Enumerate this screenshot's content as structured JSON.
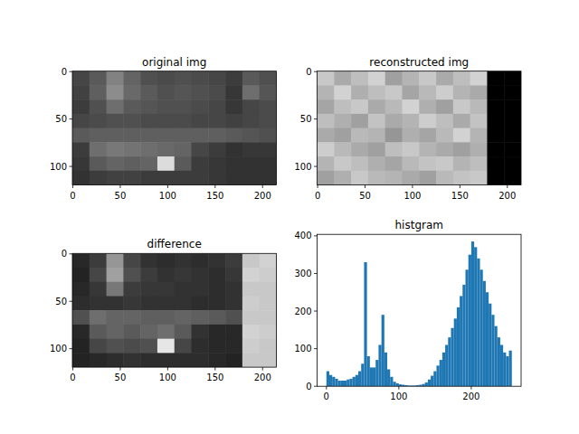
{
  "chart_data": [
    {
      "type": "image",
      "title": "original img",
      "xlim": [
        -0.5,
        214.5
      ],
      "ylim": [
        119.5,
        -0.5
      ],
      "xticks": [
        0,
        50,
        100,
        150,
        200
      ],
      "yticks": [
        0,
        50,
        100
      ],
      "cells": [
        [
          70,
          90,
          130,
          100,
          80,
          75,
          80,
          75,
          70,
          60,
          90,
          80
        ],
        [
          65,
          95,
          140,
          105,
          90,
          80,
          85,
          80,
          75,
          55,
          110,
          85
        ],
        [
          60,
          80,
          110,
          90,
          85,
          80,
          80,
          75,
          70,
          55,
          70,
          75
        ],
        [
          70,
          75,
          80,
          80,
          75,
          75,
          75,
          70,
          70,
          65,
          70,
          75
        ],
        [
          90,
          95,
          95,
          95,
          95,
          95,
          95,
          95,
          95,
          90,
          85,
          80
        ],
        [
          60,
          110,
          120,
          115,
          110,
          105,
          100,
          70,
          60,
          50,
          55,
          55
        ],
        [
          55,
          90,
          100,
          95,
          100,
          220,
          90,
          60,
          55,
          50,
          50,
          50
        ],
        [
          50,
          60,
          65,
          65,
          60,
          60,
          60,
          60,
          55,
          50,
          50,
          50
        ]
      ]
    },
    {
      "type": "image",
      "title": "reconstructed img",
      "xlim": [
        -0.5,
        214.5
      ],
      "ylim": [
        119.5,
        -0.5
      ],
      "xticks": [
        0,
        50,
        100,
        150,
        200
      ],
      "yticks": [
        0,
        50,
        100
      ],
      "cells": [
        [
          200,
          170,
          190,
          210,
          160,
          180,
          200,
          170,
          190,
          210,
          0,
          0
        ],
        [
          180,
          210,
          175,
          190,
          200,
          165,
          185,
          205,
          180,
          170,
          0,
          0
        ],
        [
          165,
          190,
          200,
          170,
          185,
          210,
          175,
          160,
          200,
          185,
          0,
          0
        ],
        [
          190,
          175,
          160,
          195,
          170,
          180,
          205,
          190,
          170,
          195,
          0,
          0
        ],
        [
          170,
          160,
          185,
          180,
          150,
          175,
          165,
          185,
          210,
          180,
          0,
          0
        ],
        [
          205,
          185,
          170,
          160,
          190,
          200,
          180,
          170,
          160,
          175,
          0,
          0
        ],
        [
          180,
          200,
          190,
          175,
          165,
          185,
          195,
          200,
          180,
          190,
          0,
          0
        ],
        [
          160,
          175,
          200,
          185,
          180,
          170,
          160,
          185,
          195,
          200,
          0,
          0
        ]
      ]
    },
    {
      "type": "image",
      "title": "difference",
      "xlim": [
        -0.5,
        214.5
      ],
      "ylim": [
        119.5,
        -0.5
      ],
      "xticks": [
        0,
        50,
        100,
        150,
        200
      ],
      "yticks": [
        0,
        50,
        100
      ],
      "cells": [
        [
          40,
          60,
          150,
          70,
          50,
          45,
          50,
          45,
          50,
          60,
          200,
          210
        ],
        [
          35,
          70,
          160,
          80,
          60,
          50,
          55,
          50,
          45,
          55,
          210,
          205
        ],
        [
          40,
          55,
          120,
          60,
          55,
          55,
          50,
          50,
          45,
          50,
          200,
          200
        ],
        [
          45,
          50,
          50,
          55,
          50,
          50,
          50,
          45,
          45,
          50,
          205,
          200
        ],
        [
          80,
          110,
          100,
          100,
          95,
          95,
          100,
          95,
          90,
          80,
          200,
          200
        ],
        [
          40,
          90,
          100,
          90,
          100,
          110,
          90,
          50,
          40,
          40,
          210,
          205
        ],
        [
          35,
          70,
          80,
          75,
          80,
          230,
          70,
          45,
          40,
          40,
          205,
          200
        ],
        [
          35,
          40,
          45,
          50,
          45,
          45,
          45,
          45,
          40,
          35,
          200,
          200
        ]
      ]
    },
    {
      "type": "histogram",
      "title": "histgram",
      "color": "#1f77b4",
      "xlim": [
        -12.8,
        268.8
      ],
      "ylim": [
        0,
        404
      ],
      "xticks": [
        0,
        100,
        200
      ],
      "yticks": [
        0,
        100,
        200,
        300,
        400
      ],
      "bins": [
        0,
        4,
        8,
        12,
        16,
        20,
        24,
        28,
        32,
        36,
        40,
        44,
        48,
        52,
        56,
        60,
        64,
        68,
        72,
        76,
        80,
        84,
        88,
        92,
        96,
        100,
        104,
        108,
        112,
        116,
        120,
        124,
        128,
        132,
        136,
        140,
        144,
        148,
        152,
        156,
        160,
        164,
        168,
        172,
        176,
        180,
        184,
        188,
        192,
        196,
        200,
        204,
        208,
        212,
        216,
        220,
        224,
        228,
        232,
        236,
        240,
        244,
        248,
        252,
        256
      ],
      "counts": [
        40,
        30,
        25,
        20,
        15,
        15,
        15,
        18,
        20,
        25,
        30,
        40,
        60,
        330,
        80,
        50,
        50,
        70,
        110,
        190,
        90,
        45,
        25,
        12,
        8,
        5,
        4,
        3,
        2,
        2,
        2,
        3,
        4,
        6,
        10,
        18,
        28,
        40,
        55,
        70,
        90,
        110,
        130,
        155,
        180,
        210,
        240,
        270,
        310,
        350,
        385,
        370,
        340,
        310,
        280,
        250,
        220,
        190,
        160,
        130,
        110,
        90,
        80,
        95
      ]
    }
  ]
}
